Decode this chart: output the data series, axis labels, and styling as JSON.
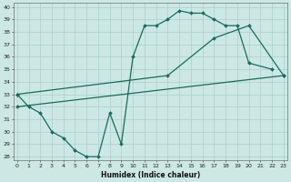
{
  "xlabel": "Humidex (Indice chaleur)",
  "bg_color": "#cce8e4",
  "grid_color": "#aacfcb",
  "line_color": "#1a6b5a",
  "xlim": [
    0,
    23
  ],
  "ylim": [
    28,
    40
  ],
  "xticks": [
    0,
    1,
    2,
    3,
    4,
    5,
    6,
    7,
    8,
    9,
    10,
    11,
    12,
    13,
    14,
    15,
    16,
    17,
    18,
    19,
    20,
    21,
    22,
    23
  ],
  "yticks": [
    28,
    29,
    30,
    31,
    32,
    33,
    34,
    35,
    36,
    37,
    38,
    39,
    40
  ],
  "curve1_x": [
    0,
    1,
    2,
    3,
    4,
    5,
    6,
    7,
    8,
    9,
    10,
    11,
    12,
    13,
    14,
    15,
    16,
    17,
    18,
    19,
    20,
    22
  ],
  "curve1_y": [
    33,
    32,
    31.5,
    30,
    29.5,
    28.5,
    28,
    28,
    31.5,
    29,
    36,
    38.5,
    38.5,
    39,
    39.7,
    39.5,
    39.5,
    39.0,
    38.5,
    38.5,
    35.5,
    35.0
  ],
  "curve2_x": [
    0,
    13,
    17,
    20,
    23
  ],
  "curve2_y": [
    33,
    34.5,
    37.5,
    38.5,
    34.5
  ],
  "curve3_x": [
    0,
    23
  ],
  "curve3_y": [
    32,
    34.5
  ]
}
